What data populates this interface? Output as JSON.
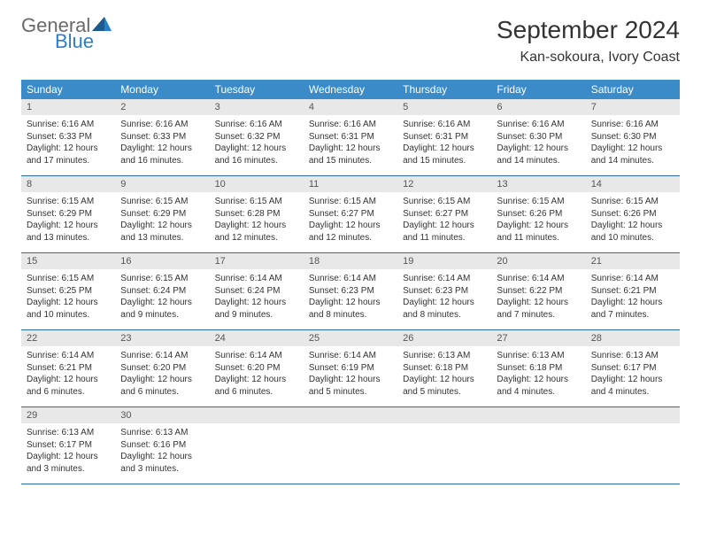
{
  "logo": {
    "general": "General",
    "blue": "Blue"
  },
  "title": "September 2024",
  "location": "Kan-sokoura, Ivory Coast",
  "colors": {
    "header_bg": "#3b8bc8",
    "header_text": "#ffffff",
    "daynum_bg": "#e8e8e8",
    "daynum_text": "#555555",
    "body_text": "#333333",
    "divider": "#2a6ca3",
    "logo_gray": "#6a6a6a",
    "logo_blue": "#2a7ec4"
  },
  "day_headers": [
    "Sunday",
    "Monday",
    "Tuesday",
    "Wednesday",
    "Thursday",
    "Friday",
    "Saturday"
  ],
  "weeks": [
    [
      {
        "n": "1",
        "sunrise": "6:16 AM",
        "sunset": "6:33 PM",
        "daylight": "12 hours and 17 minutes."
      },
      {
        "n": "2",
        "sunrise": "6:16 AM",
        "sunset": "6:33 PM",
        "daylight": "12 hours and 16 minutes."
      },
      {
        "n": "3",
        "sunrise": "6:16 AM",
        "sunset": "6:32 PM",
        "daylight": "12 hours and 16 minutes."
      },
      {
        "n": "4",
        "sunrise": "6:16 AM",
        "sunset": "6:31 PM",
        "daylight": "12 hours and 15 minutes."
      },
      {
        "n": "5",
        "sunrise": "6:16 AM",
        "sunset": "6:31 PM",
        "daylight": "12 hours and 15 minutes."
      },
      {
        "n": "6",
        "sunrise": "6:16 AM",
        "sunset": "6:30 PM",
        "daylight": "12 hours and 14 minutes."
      },
      {
        "n": "7",
        "sunrise": "6:16 AM",
        "sunset": "6:30 PM",
        "daylight": "12 hours and 14 minutes."
      }
    ],
    [
      {
        "n": "8",
        "sunrise": "6:15 AM",
        "sunset": "6:29 PM",
        "daylight": "12 hours and 13 minutes."
      },
      {
        "n": "9",
        "sunrise": "6:15 AM",
        "sunset": "6:29 PM",
        "daylight": "12 hours and 13 minutes."
      },
      {
        "n": "10",
        "sunrise": "6:15 AM",
        "sunset": "6:28 PM",
        "daylight": "12 hours and 12 minutes."
      },
      {
        "n": "11",
        "sunrise": "6:15 AM",
        "sunset": "6:27 PM",
        "daylight": "12 hours and 12 minutes."
      },
      {
        "n": "12",
        "sunrise": "6:15 AM",
        "sunset": "6:27 PM",
        "daylight": "12 hours and 11 minutes."
      },
      {
        "n": "13",
        "sunrise": "6:15 AM",
        "sunset": "6:26 PM",
        "daylight": "12 hours and 11 minutes."
      },
      {
        "n": "14",
        "sunrise": "6:15 AM",
        "sunset": "6:26 PM",
        "daylight": "12 hours and 10 minutes."
      }
    ],
    [
      {
        "n": "15",
        "sunrise": "6:15 AM",
        "sunset": "6:25 PM",
        "daylight": "12 hours and 10 minutes."
      },
      {
        "n": "16",
        "sunrise": "6:15 AM",
        "sunset": "6:24 PM",
        "daylight": "12 hours and 9 minutes."
      },
      {
        "n": "17",
        "sunrise": "6:14 AM",
        "sunset": "6:24 PM",
        "daylight": "12 hours and 9 minutes."
      },
      {
        "n": "18",
        "sunrise": "6:14 AM",
        "sunset": "6:23 PM",
        "daylight": "12 hours and 8 minutes."
      },
      {
        "n": "19",
        "sunrise": "6:14 AM",
        "sunset": "6:23 PM",
        "daylight": "12 hours and 8 minutes."
      },
      {
        "n": "20",
        "sunrise": "6:14 AM",
        "sunset": "6:22 PM",
        "daylight": "12 hours and 7 minutes."
      },
      {
        "n": "21",
        "sunrise": "6:14 AM",
        "sunset": "6:21 PM",
        "daylight": "12 hours and 7 minutes."
      }
    ],
    [
      {
        "n": "22",
        "sunrise": "6:14 AM",
        "sunset": "6:21 PM",
        "daylight": "12 hours and 6 minutes."
      },
      {
        "n": "23",
        "sunrise": "6:14 AM",
        "sunset": "6:20 PM",
        "daylight": "12 hours and 6 minutes."
      },
      {
        "n": "24",
        "sunrise": "6:14 AM",
        "sunset": "6:20 PM",
        "daylight": "12 hours and 6 minutes."
      },
      {
        "n": "25",
        "sunrise": "6:14 AM",
        "sunset": "6:19 PM",
        "daylight": "12 hours and 5 minutes."
      },
      {
        "n": "26",
        "sunrise": "6:13 AM",
        "sunset": "6:18 PM",
        "daylight": "12 hours and 5 minutes."
      },
      {
        "n": "27",
        "sunrise": "6:13 AM",
        "sunset": "6:18 PM",
        "daylight": "12 hours and 4 minutes."
      },
      {
        "n": "28",
        "sunrise": "6:13 AM",
        "sunset": "6:17 PM",
        "daylight": "12 hours and 4 minutes."
      }
    ],
    [
      {
        "n": "29",
        "sunrise": "6:13 AM",
        "sunset": "6:17 PM",
        "daylight": "12 hours and 3 minutes."
      },
      {
        "n": "30",
        "sunrise": "6:13 AM",
        "sunset": "6:16 PM",
        "daylight": "12 hours and 3 minutes."
      },
      null,
      null,
      null,
      null,
      null
    ]
  ],
  "labels": {
    "sunrise": "Sunrise:",
    "sunset": "Sunset:",
    "daylight": "Daylight:"
  }
}
